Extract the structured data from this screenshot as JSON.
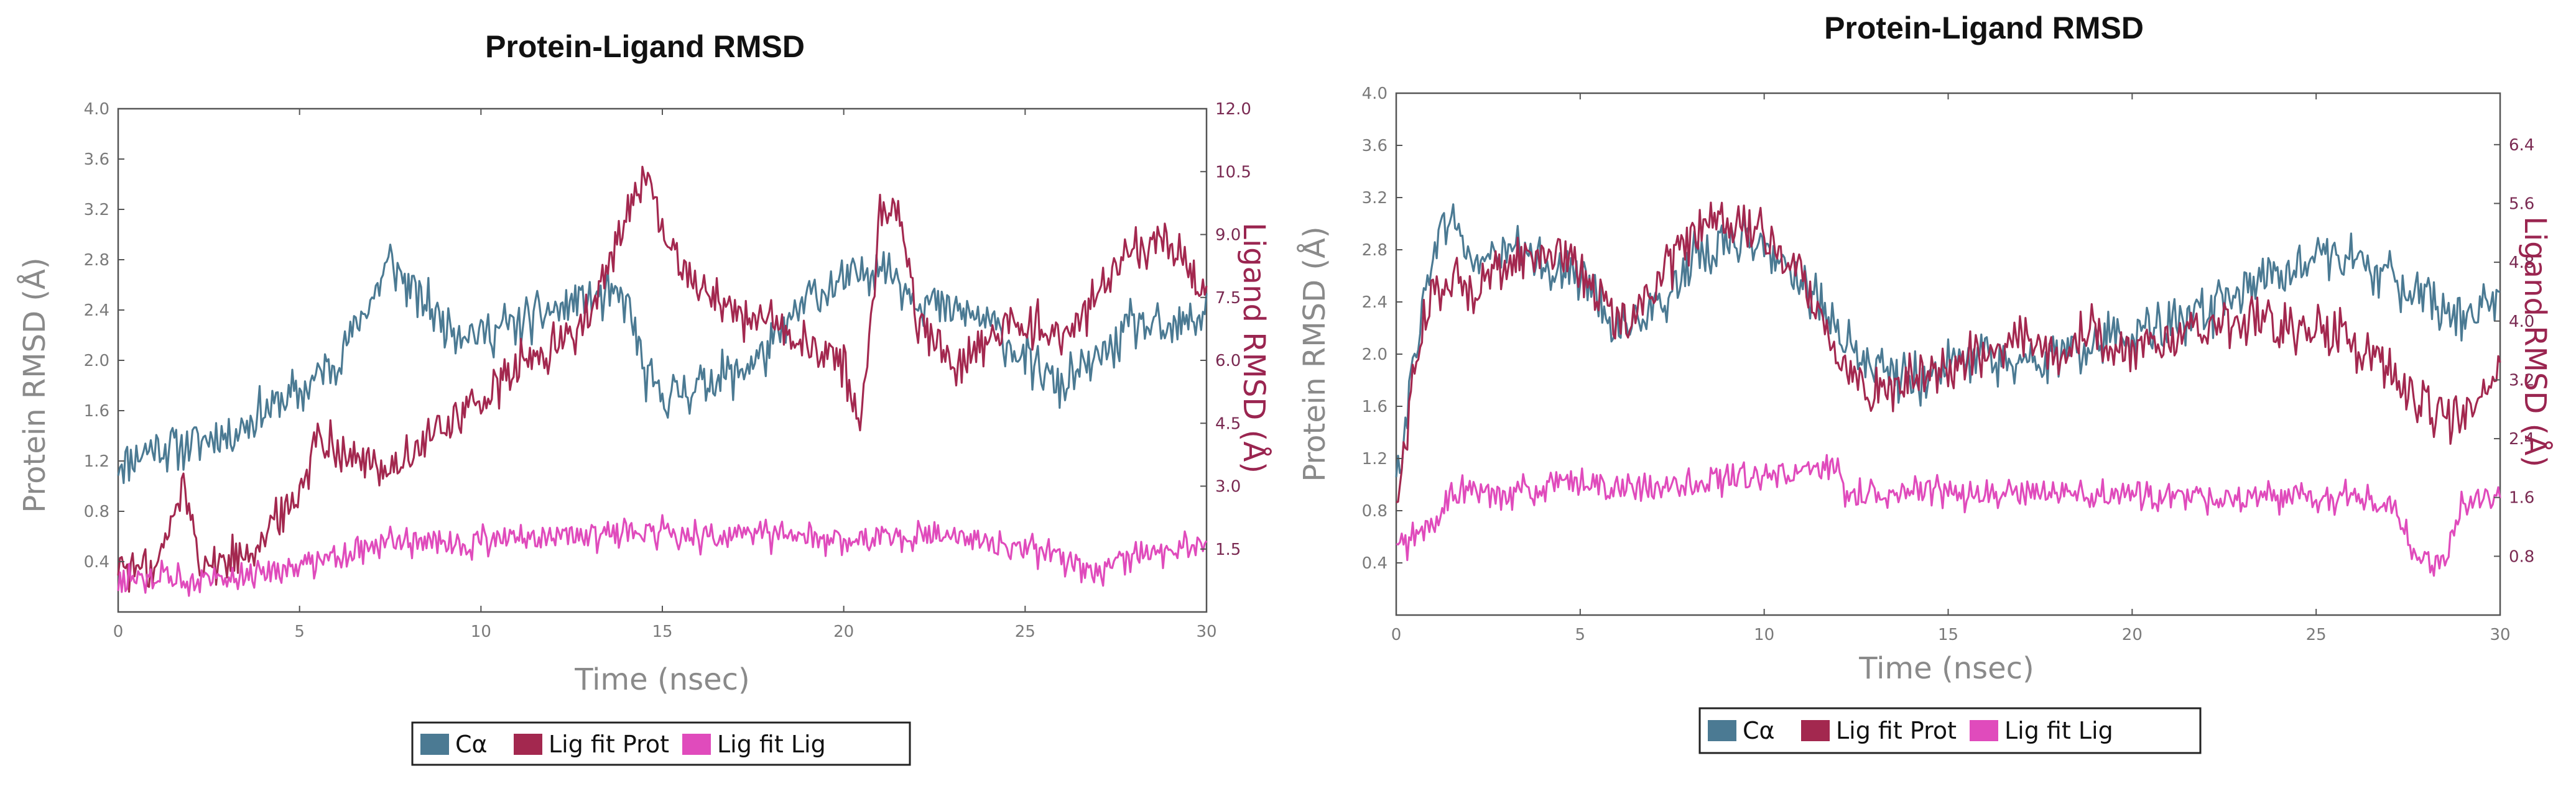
{
  "colors": {
    "ca": "#4b7a93",
    "lig_fit_prot": "#a3284f",
    "lig_fit_lig": "#e04bbc",
    "frame": "#555555"
  },
  "legend": [
    "Cα",
    "Lig fit Prot",
    "Lig fit Lig"
  ],
  "chart_data": [
    {
      "type": "line",
      "title": "Protein-Ligand RMSD",
      "xlabel": "Time (nsec)",
      "ylabel": "Protein RMSD (Å)",
      "y2label": "Ligand RMSD (Å)",
      "xlim": [
        0,
        30
      ],
      "ylim": [
        0,
        4.0
      ],
      "y2lim": [
        0,
        12.0
      ],
      "xticks": [
        "0",
        "5",
        "10",
        "15",
        "20",
        "25",
        "30"
      ],
      "yticks": [
        "0.4",
        "0.8",
        "1.2",
        "1.6",
        "2.0",
        "2.4",
        "2.8",
        "3.2",
        "3.6",
        "4.0"
      ],
      "y2ticks": [
        "1.5",
        "3.0",
        "4.5",
        "6.0",
        "7.5",
        "9.0",
        "10.5",
        "12.0"
      ],
      "legend_position": "bottom-center",
      "grid": false,
      "series": [
        {
          "name": "Cα",
          "axis": "left",
          "x": [
            0,
            1,
            2,
            3,
            4,
            5,
            6,
            7,
            7.5,
            8,
            9,
            10,
            11,
            12,
            13,
            14,
            14.5,
            15,
            16,
            17,
            18,
            19,
            20,
            21,
            22,
            23,
            24,
            25,
            26,
            27,
            28,
            29,
            30
          ],
          "y": [
            1.2,
            1.3,
            1.35,
            1.4,
            1.6,
            1.75,
            2.0,
            2.5,
            2.8,
            2.6,
            2.3,
            2.2,
            2.3,
            2.4,
            2.5,
            2.5,
            1.9,
            1.7,
            1.8,
            1.9,
            2.1,
            2.5,
            2.6,
            2.8,
            2.5,
            2.4,
            2.3,
            2.0,
            1.8,
            2.0,
            2.3,
            2.2,
            2.4
          ]
        },
        {
          "name": "Lig fit Prot",
          "axis": "right",
          "x": [
            0,
            1,
            1.8,
            2.3,
            3,
            4,
            4.8,
            5.5,
            6,
            7,
            8,
            9,
            10,
            11,
            12,
            13,
            13.5,
            14,
            14.5,
            15,
            15.5,
            16,
            17,
            18,
            19,
            20,
            20.5,
            21,
            21.5,
            22,
            23,
            24,
            25,
            26,
            27,
            28,
            29,
            30
          ],
          "y": [
            1.2,
            0.9,
            3.0,
            1.2,
            1.2,
            1.8,
            2.5,
            4.2,
            4.0,
            3.4,
            3.6,
            4.5,
            5.0,
            5.8,
            6.3,
            7.0,
            8.2,
            9.5,
            10.5,
            9.0,
            8.3,
            7.8,
            7.2,
            6.8,
            6.3,
            6.0,
            4.5,
            9.5,
            9.8,
            7.0,
            6.0,
            6.5,
            7.0,
            6.5,
            7.5,
            8.5,
            9.0,
            7.5
          ]
        },
        {
          "name": "Lig fit Lig",
          "axis": "right",
          "x": [
            0,
            1,
            2,
            3,
            4,
            5,
            6,
            7,
            8,
            9,
            10,
            11,
            12,
            13,
            14,
            15,
            16,
            17,
            18,
            19,
            20,
            21,
            22,
            23,
            24,
            25,
            26,
            27,
            28,
            29,
            30
          ],
          "y": [
            0.7,
            0.8,
            0.8,
            0.9,
            1.0,
            1.1,
            1.4,
            1.6,
            1.7,
            1.6,
            1.7,
            1.7,
            1.8,
            1.8,
            1.9,
            1.9,
            1.8,
            1.8,
            1.8,
            1.8,
            1.7,
            1.8,
            1.8,
            1.9,
            1.6,
            1.5,
            1.3,
            0.9,
            1.3,
            1.5,
            1.6
          ]
        }
      ]
    },
    {
      "type": "line",
      "title": "Protein-Ligand RMSD",
      "xlabel": "Time (nsec)",
      "ylabel": "Protein RMSD (Å)",
      "y2label": "Ligand RMSD (Å)",
      "xlim": [
        0,
        30
      ],
      "ylim": [
        0,
        4.0
      ],
      "y2lim": [
        0,
        7.1
      ],
      "xticks": [
        "0",
        "5",
        "10",
        "15",
        "20",
        "25",
        "30"
      ],
      "yticks": [
        "0.4",
        "0.8",
        "1.2",
        "1.6",
        "2.0",
        "2.4",
        "2.8",
        "3.2",
        "3.6",
        "4.0"
      ],
      "y2ticks": [
        "0.8",
        "1.6",
        "2.4",
        "3.2",
        "4.0",
        "4.8",
        "5.6",
        "6.4"
      ],
      "legend_position": "bottom-center",
      "grid": false,
      "series": [
        {
          "name": "Cα",
          "axis": "left",
          "x": [
            0,
            0.5,
            1,
            1.5,
            2,
            3,
            4,
            5,
            6,
            7,
            8,
            9,
            10,
            11,
            12,
            13,
            14,
            15,
            16,
            17,
            18,
            19,
            20,
            21,
            22,
            23,
            24,
            25,
            26,
            27,
            28,
            29,
            30
          ],
          "y": [
            1.0,
            2.0,
            2.8,
            3.1,
            2.7,
            2.8,
            2.7,
            2.6,
            2.2,
            2.3,
            2.7,
            2.9,
            2.8,
            2.6,
            2.1,
            1.9,
            1.8,
            1.9,
            2.0,
            1.9,
            2.0,
            2.1,
            2.2,
            2.2,
            2.3,
            2.5,
            2.6,
            2.8,
            2.7,
            2.6,
            2.4,
            2.3,
            2.4
          ]
        },
        {
          "name": "Lig fit Prot",
          "axis": "left",
          "x": [
            0,
            0.5,
            1,
            1.5,
            2,
            3,
            4,
            5,
            6,
            7,
            8,
            9,
            10,
            11,
            12,
            13,
            14,
            15,
            16,
            17,
            18,
            19,
            20,
            21,
            22,
            23,
            24,
            25,
            26,
            27,
            28,
            29,
            30
          ],
          "y": [
            0.8,
            1.9,
            2.5,
            2.6,
            2.5,
            2.7,
            2.8,
            2.7,
            2.2,
            2.5,
            2.9,
            3.0,
            2.9,
            2.6,
            2.0,
            1.7,
            1.8,
            1.9,
            2.0,
            2.1,
            2.0,
            2.2,
            2.0,
            2.1,
            2.2,
            2.3,
            2.2,
            2.2,
            2.1,
            1.9,
            1.6,
            1.5,
            1.9
          ]
        },
        {
          "name": "Lig fit Lig",
          "axis": "left",
          "x": [
            0,
            0.5,
            1,
            1.5,
            2,
            3,
            4,
            5,
            6,
            7,
            8,
            9,
            10,
            11,
            12,
            12.2,
            13,
            14,
            15,
            16,
            17,
            18,
            19,
            20,
            21,
            22,
            23,
            24,
            25,
            26,
            27,
            27.5,
            28,
            28.5,
            29,
            30
          ],
          "y": [
            0.5,
            0.6,
            0.7,
            0.9,
            0.95,
            0.95,
            0.95,
            1.05,
            0.95,
            0.95,
            1.0,
            1.05,
            1.05,
            1.1,
            1.1,
            0.9,
            0.95,
            0.95,
            0.95,
            0.9,
            0.95,
            0.95,
            0.9,
            0.95,
            0.9,
            0.9,
            0.9,
            0.9,
            0.9,
            0.9,
            0.85,
            0.6,
            0.4,
            0.4,
            0.9,
            0.9
          ]
        }
      ]
    }
  ]
}
